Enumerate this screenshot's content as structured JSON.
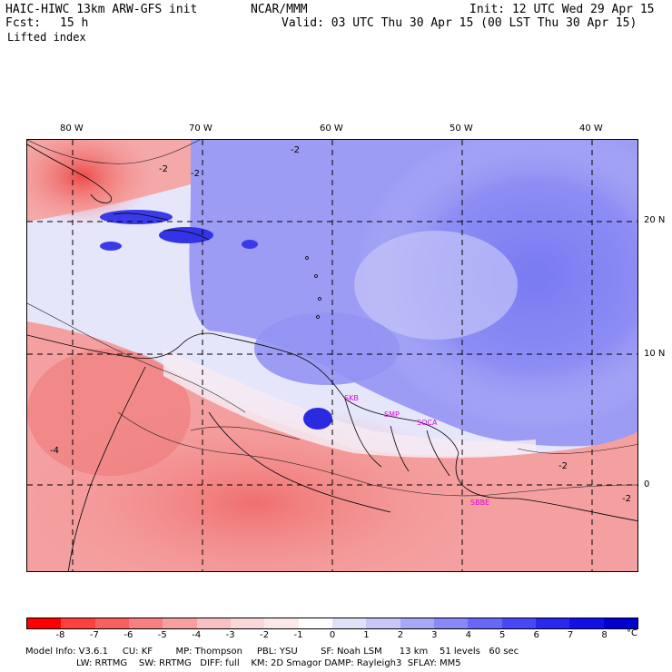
{
  "header": {
    "model": "HAIC-HIWC 13km ARW-GFS init",
    "org": "NCAR/MMM",
    "init": "Init: 12 UTC Wed 29 Apr 15",
    "fcst_label": "Fcst:",
    "fcst_value": "15 h",
    "valid": "Valid: 03 UTC Thu 30 Apr 15 (00 LST Thu 30 Apr 15)",
    "field": "Lifted index"
  },
  "axes": {
    "lon_labels": [
      "80 W",
      "70 W",
      "60 W",
      "50 W",
      "40 W"
    ],
    "lat_labels": [
      "20 N",
      "10 N",
      "0"
    ]
  },
  "stations": [
    "SKB",
    "SMP",
    "SOCA",
    "SBBE"
  ],
  "colorbar": {
    "ticks": [
      "-8",
      "-7",
      "-6",
      "-5",
      "-4",
      "-3",
      "-2",
      "-1",
      "0",
      "1",
      "2",
      "3",
      "4",
      "5",
      "6",
      "7",
      "8"
    ],
    "unit": "°C",
    "colors": [
      "#ff0000",
      "#ff4040",
      "#f86060",
      "#f88080",
      "#f8a0a0",
      "#f8c0c0",
      "#f8d8d8",
      "#fce8e8",
      "#ffffff",
      "#e0e0f8",
      "#c8c8f8",
      "#a8a8f8",
      "#8888f8",
      "#6868f8",
      "#4848f8",
      "#2828f0",
      "#1010e8",
      "#0000d0"
    ]
  },
  "footer": {
    "line1": "Model Info: V3.6.1     CU: KF        MP: Thompson     PBL: YSU        SF: Noah LSM      13 km    51 levels   60 sec",
    "line2": "LW: RRTMG    SW: RRTMG   DIFF: full    KM: 2D Smagor DAMP: Rayleigh3  SFLAY: MM5"
  }
}
